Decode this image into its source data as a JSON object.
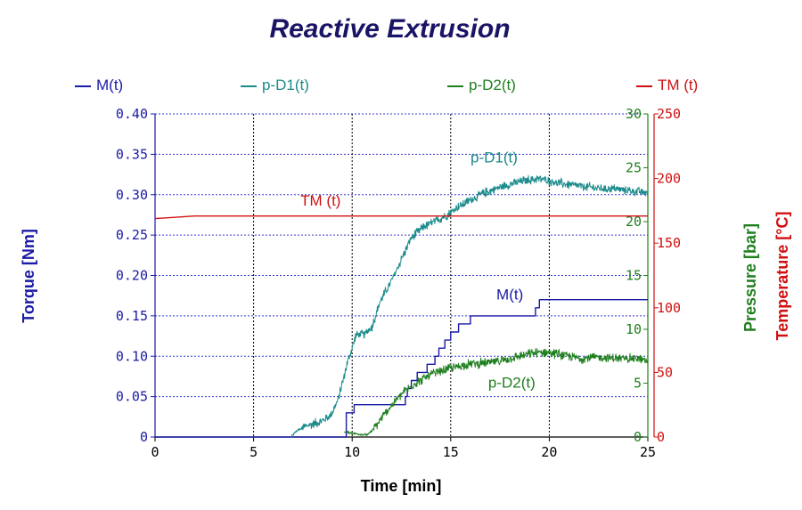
{
  "chart_data": {
    "type": "line",
    "title": "Reactive Extrusion",
    "xlabel": "Time [min]",
    "xlim": [
      0,
      25
    ],
    "x_ticks": [
      "0",
      "5",
      "10",
      "15",
      "20",
      "25"
    ],
    "axes": {
      "torque": {
        "label": "Torque [Nm]",
        "range": [
          0,
          0.4
        ],
        "ticks": [
          "0",
          "0.05",
          "0.10",
          "0.15",
          "0.20",
          "0.25",
          "0.30",
          "0.35",
          "0.40"
        ],
        "color": "#1a1aa6"
      },
      "pressure": {
        "label": "Pressure [bar]",
        "range": [
          0,
          30
        ],
        "ticks": [
          "0",
          "5",
          "10",
          "15",
          "20",
          "25",
          "30"
        ],
        "color": "#1f7f1f"
      },
      "temperature": {
        "label": "Temperature [°C]",
        "range": [
          0,
          250
        ],
        "ticks": [
          "0",
          "50",
          "100",
          "150",
          "200",
          "250"
        ],
        "color": "#d01010"
      }
    },
    "grid": true,
    "legend_position": "top",
    "series": [
      {
        "name": "M(t)",
        "axis": "torque",
        "color": "#1a1aa6",
        "style": "step",
        "points": [
          [
            0,
            0
          ],
          [
            9.6,
            0
          ],
          [
            9.7,
            0.03
          ],
          [
            10.0,
            0.03
          ],
          [
            10.1,
            0.04
          ],
          [
            12.6,
            0.04
          ],
          [
            12.7,
            0.05
          ],
          [
            12.8,
            0.06
          ],
          [
            13.0,
            0.07
          ],
          [
            13.3,
            0.08
          ],
          [
            13.8,
            0.09
          ],
          [
            14.2,
            0.1
          ],
          [
            14.4,
            0.11
          ],
          [
            14.7,
            0.12
          ],
          [
            15.0,
            0.13
          ],
          [
            15.4,
            0.14
          ],
          [
            16.0,
            0.15
          ],
          [
            19.2,
            0.15
          ],
          [
            19.3,
            0.16
          ],
          [
            19.5,
            0.17
          ],
          [
            25,
            0.17
          ]
        ]
      },
      {
        "name": "p-D1(t)",
        "axis": "pressure",
        "color": "#1a8a8a",
        "style": "noisy",
        "points": [
          [
            6.9,
            0
          ],
          [
            7.2,
            0.6
          ],
          [
            7.8,
            1.1
          ],
          [
            8.5,
            1.5
          ],
          [
            8.9,
            2.0
          ],
          [
            9.3,
            3.5
          ],
          [
            9.7,
            6.5
          ],
          [
            10.2,
            9.5
          ],
          [
            10.6,
            9.5
          ],
          [
            11.0,
            10.2
          ],
          [
            11.4,
            12.5
          ],
          [
            12.0,
            14.5
          ],
          [
            12.5,
            16.5
          ],
          [
            13.0,
            18.5
          ],
          [
            13.6,
            19.5
          ],
          [
            14.2,
            20.0
          ],
          [
            14.8,
            20.6
          ],
          [
            15.5,
            21.5
          ],
          [
            16.5,
            22.5
          ],
          [
            17.5,
            23.2
          ],
          [
            18.5,
            23.7
          ],
          [
            19.5,
            24.0
          ],
          [
            20.5,
            23.6
          ],
          [
            21.5,
            23.3
          ],
          [
            22.5,
            23.1
          ],
          [
            23.5,
            23.0
          ],
          [
            24.5,
            22.8
          ],
          [
            25,
            22.7
          ]
        ],
        "label": "p-D1(t)"
      },
      {
        "name": "p-D2(t)",
        "axis": "pressure",
        "color": "#1f7f1f",
        "style": "noisy",
        "points": [
          [
            9.6,
            0.5
          ],
          [
            10.2,
            0.3
          ],
          [
            10.8,
            0.2
          ],
          [
            11.2,
            1.0
          ],
          [
            11.8,
            2.5
          ],
          [
            12.5,
            4.0
          ],
          [
            13.2,
            5.0
          ],
          [
            14.0,
            5.8
          ],
          [
            15.0,
            6.4
          ],
          [
            16.0,
            6.8
          ],
          [
            17.0,
            6.9
          ],
          [
            18.0,
            7.3
          ],
          [
            19.0,
            7.7
          ],
          [
            19.8,
            7.9
          ],
          [
            20.5,
            7.7
          ],
          [
            21.5,
            7.3
          ],
          [
            22.5,
            7.4
          ],
          [
            23.5,
            7.3
          ],
          [
            24.5,
            7.3
          ],
          [
            25,
            7.0
          ]
        ],
        "label": "p-D2(t)"
      },
      {
        "name": "TM(t)",
        "axis": "temperature",
        "color": "#d01010",
        "style": "line",
        "points": [
          [
            0,
            169
          ],
          [
            1,
            170
          ],
          [
            2,
            171
          ],
          [
            4,
            171
          ],
          [
            25,
            171
          ]
        ],
        "label": "TM (t)"
      }
    ],
    "annotations": [
      {
        "text": "p-D1(t)",
        "series": "p-D1(t)",
        "at_x": 17.2,
        "at_y": 25.5,
        "axis": "pressure"
      },
      {
        "text": "TM (t)",
        "series": "TM(t)",
        "at_x": 8.4,
        "at_y": 179,
        "axis": "temperature"
      },
      {
        "text": "M(t)",
        "series": "M(t)",
        "at_x": 18.0,
        "at_y": 0.17,
        "axis": "torque"
      },
      {
        "text": "p-D2(t)",
        "series": "p-D2(t)",
        "at_x": 18.1,
        "at_y": 4.6,
        "axis": "pressure"
      }
    ],
    "legend": [
      "M(t)",
      "p-D1(t)",
      "p-D2(t)",
      "TM (t)"
    ]
  }
}
